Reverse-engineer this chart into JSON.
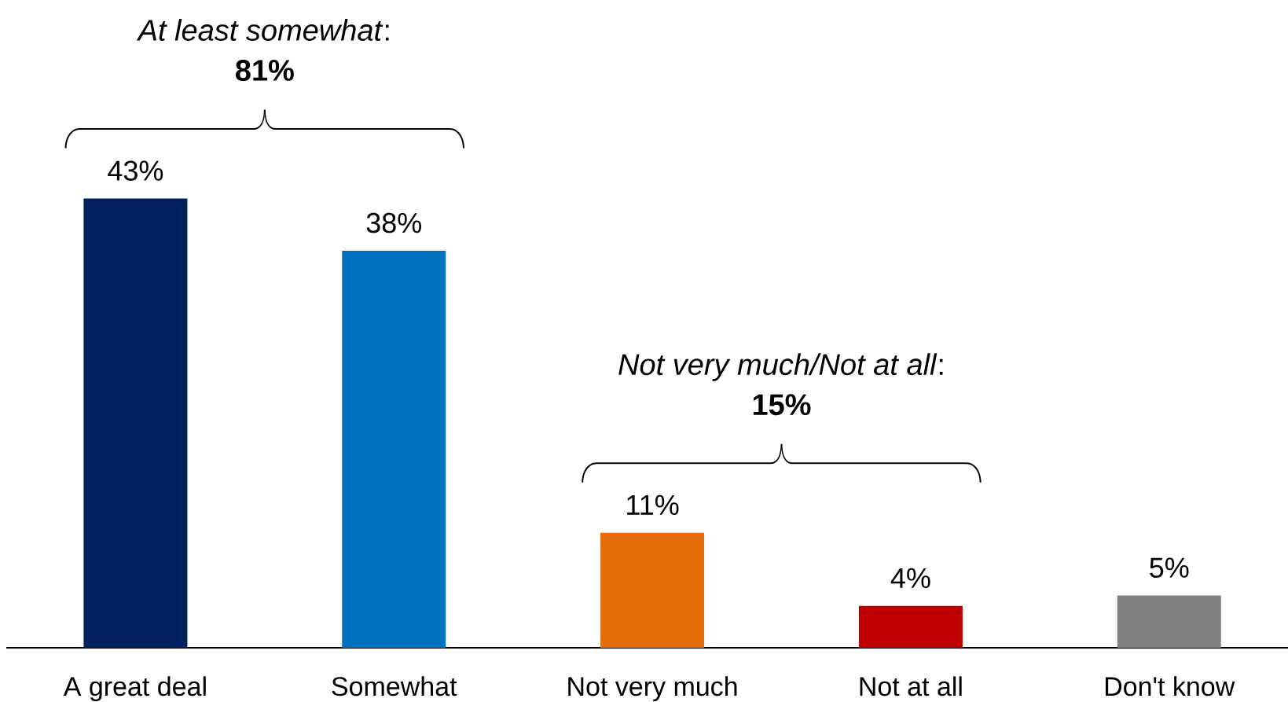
{
  "chart_data": {
    "type": "bar",
    "categories": [
      "A great deal",
      "Somewhat",
      "Not very much",
      "Not at all",
      "Don't know"
    ],
    "values": [
      43,
      38,
      11,
      4,
      5
    ],
    "colors": [
      "#002060",
      "#0070C0",
      "#E46C0A",
      "#C00000",
      "#808080"
    ],
    "value_labels": [
      "43%",
      "38%",
      "11%",
      "4%",
      "5%"
    ],
    "annotations": [
      "*At least somewhat*:",
      "81%",
      "*Not very much/Not at all*:",
      "15%"
    ]
  }
}
